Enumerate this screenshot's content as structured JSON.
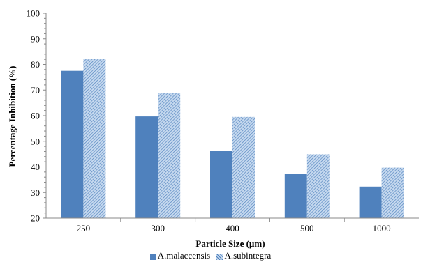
{
  "colors": {
    "series1": "#4f81bd",
    "series2_light": "#c6d9ef",
    "series2_dark": "#4f81bd",
    "axis": "#888888",
    "grid_tick": "#888888"
  },
  "chart_data": {
    "type": "bar",
    "title": "",
    "xlabel": "Particle Size (µm)",
    "ylabel": "Percentage Inhibition (%)",
    "ylim": [
      20,
      100
    ],
    "yticks": [
      20,
      30,
      40,
      50,
      60,
      70,
      80,
      90,
      100
    ],
    "grid": false,
    "legend_position": "bottom",
    "categories": [
      "250",
      "300",
      "400",
      "500",
      "1000"
    ],
    "series": [
      {
        "name": "A.malaccensis",
        "pattern": "solid",
        "values": [
          77.5,
          59.7,
          46.3,
          37.4,
          32.3
        ]
      },
      {
        "name": "A.subintegra",
        "pattern": "hatched",
        "values": [
          82.3,
          68.7,
          59.5,
          44.9,
          39.7
        ]
      }
    ]
  }
}
